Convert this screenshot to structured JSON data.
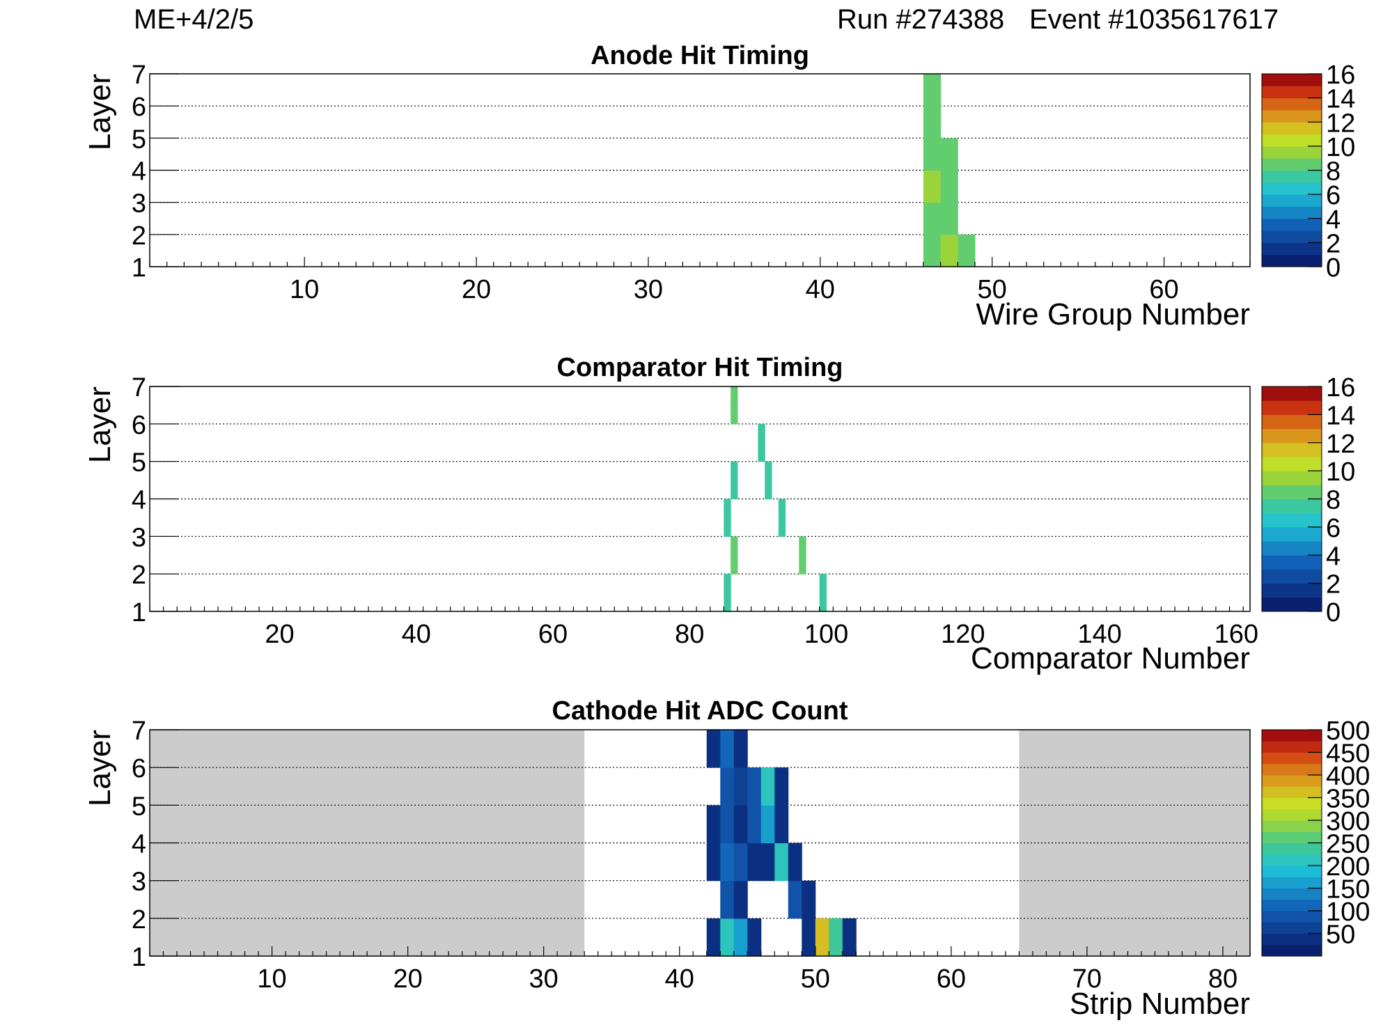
{
  "header": {
    "chamber": "ME+4/2/5",
    "run": "Run #274388",
    "event": "Event #1035617617"
  },
  "chart_data": [
    {
      "type": "heatmap",
      "title": "Anode Hit Timing",
      "xlabel": "Wire Group Number",
      "ylabel": "Layer",
      "xlim": [
        1,
        65
      ],
      "ylim": [
        1,
        7
      ],
      "xticks": [
        10,
        20,
        30,
        40,
        50,
        60
      ],
      "yticks": [
        1,
        2,
        3,
        4,
        5,
        6,
        7
      ],
      "grid": "horizontal dotted lines at each layer",
      "colorbar": {
        "min": 0,
        "max": 16,
        "ticks": [
          0,
          2,
          4,
          6,
          8,
          10,
          12,
          14,
          16
        ],
        "bands": 16
      },
      "background": "white",
      "shaded_x": [],
      "cells": [
        {
          "x": 46,
          "layer": 1,
          "value": 8
        },
        {
          "x": 47,
          "layer": 1,
          "value": 9
        },
        {
          "x": 48,
          "layer": 1,
          "value": 8
        },
        {
          "x": 46,
          "layer": 2,
          "value": 8
        },
        {
          "x": 47,
          "layer": 2,
          "value": 8
        },
        {
          "x": 46,
          "layer": 3,
          "value": 9
        },
        {
          "x": 47,
          "layer": 3,
          "value": 8
        },
        {
          "x": 46,
          "layer": 4,
          "value": 8
        },
        {
          "x": 47,
          "layer": 4,
          "value": 8
        },
        {
          "x": 46,
          "layer": 5,
          "value": 8
        },
        {
          "x": 46,
          "layer": 6,
          "value": 8
        }
      ]
    },
    {
      "type": "heatmap",
      "title": "Comparator Hit Timing",
      "xlabel": "Comparator Number",
      "ylabel": "Layer",
      "xlim": [
        1,
        162
      ],
      "ylim": [
        1,
        7
      ],
      "xticks": [
        20,
        40,
        60,
        80,
        100,
        120,
        140,
        160
      ],
      "yticks": [
        1,
        2,
        3,
        4,
        5,
        6,
        7
      ],
      "grid": "horizontal dotted lines at each layer",
      "colorbar": {
        "min": 0,
        "max": 16,
        "ticks": [
          0,
          2,
          4,
          6,
          8,
          10,
          12,
          14,
          16
        ],
        "bands": 16
      },
      "background": "white",
      "shaded_x": [],
      "cells": [
        {
          "x": 85,
          "layer": 1,
          "value": 7
        },
        {
          "x": 99,
          "layer": 1,
          "value": 7
        },
        {
          "x": 86,
          "layer": 2,
          "value": 8
        },
        {
          "x": 96,
          "layer": 2,
          "value": 8
        },
        {
          "x": 85,
          "layer": 3,
          "value": 7
        },
        {
          "x": 93,
          "layer": 3,
          "value": 7
        },
        {
          "x": 86,
          "layer": 4,
          "value": 7
        },
        {
          "x": 91,
          "layer": 4,
          "value": 7
        },
        {
          "x": 90,
          "layer": 5,
          "value": 7
        },
        {
          "x": 86,
          "layer": 6,
          "value": 8
        }
      ]
    },
    {
      "type": "heatmap",
      "title": "Cathode Hit ADC Count",
      "xlabel": "Strip Number",
      "ylabel": "Layer",
      "xlim": [
        1,
        82
      ],
      "ylim": [
        1,
        7
      ],
      "xticks": [
        10,
        20,
        30,
        40,
        50,
        60,
        70,
        80
      ],
      "yticks": [
        1,
        2,
        3,
        4,
        5,
        6,
        7
      ],
      "grid": "horizontal dotted lines at each layer",
      "colorbar": {
        "min": 0,
        "max": 500,
        "ticks": [
          50,
          100,
          150,
          200,
          250,
          300,
          350,
          400,
          450,
          500
        ],
        "bands": 20
      },
      "background": "light grey outside the readout window",
      "shaded_x": [
        [
          1,
          33
        ],
        [
          65,
          82
        ]
      ],
      "cells": [
        {
          "x": 42,
          "layer": 1,
          "value": 40
        },
        {
          "x": 43,
          "layer": 1,
          "value": 210
        },
        {
          "x": 44,
          "layer": 1,
          "value": 160
        },
        {
          "x": 45,
          "layer": 1,
          "value": 40
        },
        {
          "x": 49,
          "layer": 1,
          "value": 40
        },
        {
          "x": 50,
          "layer": 1,
          "value": 350
        },
        {
          "x": 51,
          "layer": 1,
          "value": 240
        },
        {
          "x": 52,
          "layer": 1,
          "value": 40
        },
        {
          "x": 43,
          "layer": 2,
          "value": 90
        },
        {
          "x": 44,
          "layer": 2,
          "value": 40
        },
        {
          "x": 48,
          "layer": 2,
          "value": 90
        },
        {
          "x": 49,
          "layer": 2,
          "value": 40
        },
        {
          "x": 42,
          "layer": 3,
          "value": 40
        },
        {
          "x": 43,
          "layer": 3,
          "value": 110
        },
        {
          "x": 44,
          "layer": 3,
          "value": 90
        },
        {
          "x": 45,
          "layer": 3,
          "value": 40
        },
        {
          "x": 46,
          "layer": 3,
          "value": 40
        },
        {
          "x": 47,
          "layer": 3,
          "value": 210
        },
        {
          "x": 48,
          "layer": 3,
          "value": 40
        },
        {
          "x": 42,
          "layer": 4,
          "value": 40
        },
        {
          "x": 43,
          "layer": 4,
          "value": 90
        },
        {
          "x": 44,
          "layer": 4,
          "value": 40
        },
        {
          "x": 45,
          "layer": 4,
          "value": 90
        },
        {
          "x": 46,
          "layer": 4,
          "value": 160
        },
        {
          "x": 47,
          "layer": 4,
          "value": 40
        },
        {
          "x": 43,
          "layer": 5,
          "value": 90
        },
        {
          "x": 44,
          "layer": 5,
          "value": 70
        },
        {
          "x": 45,
          "layer": 5,
          "value": 90
        },
        {
          "x": 46,
          "layer": 5,
          "value": 210
        },
        {
          "x": 47,
          "layer": 5,
          "value": 40
        },
        {
          "x": 42,
          "layer": 6,
          "value": 40
        },
        {
          "x": 43,
          "layer": 6,
          "value": 110
        },
        {
          "x": 44,
          "layer": 6,
          "value": 40
        }
      ]
    }
  ]
}
